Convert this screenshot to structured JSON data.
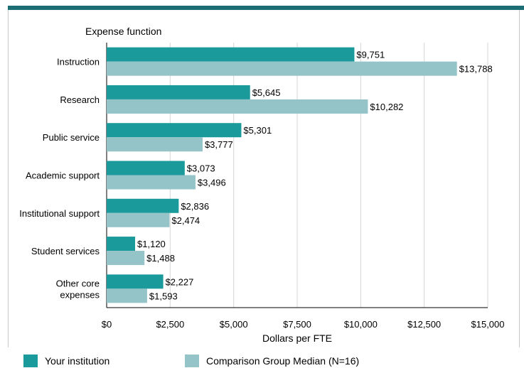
{
  "colors": {
    "institution": "#1b9a9c",
    "comparison": "#94c3c8",
    "accent": "#1c6e74"
  },
  "chart_data": {
    "type": "bar",
    "orientation": "horizontal",
    "title": "Expense function",
    "xlabel": "Dollars per FTE",
    "ylabel": "Expense function",
    "xlim": [
      0,
      15000
    ],
    "xticks": [
      0,
      2500,
      5000,
      7500,
      10000,
      12500,
      15000
    ],
    "xtick_labels": [
      "$0",
      "$2,500",
      "$5,000",
      "$7,500",
      "$10,000",
      "$12,500",
      "$15,000"
    ],
    "grid": true,
    "legend_position": "bottom",
    "categories": [
      "Instruction",
      "Research",
      "Public service",
      "Academic support",
      "Institutional support",
      "Student services",
      "Other core expenses"
    ],
    "category_lines": [
      [
        "Instruction"
      ],
      [
        "Research"
      ],
      [
        "Public service"
      ],
      [
        "Academic support"
      ],
      [
        "Institutional support"
      ],
      [
        "Student services"
      ],
      [
        "Other core",
        "expenses"
      ]
    ],
    "series": [
      {
        "name": "Your institution",
        "values": [
          9751,
          5645,
          5301,
          3073,
          2836,
          1120,
          2227
        ],
        "labels": [
          "$9,751",
          "$5,645",
          "$5,301",
          "$3,073",
          "$2,836",
          "$1,120",
          "$2,227"
        ]
      },
      {
        "name": "Comparison Group Median (N=16)",
        "values": [
          13788,
          10282,
          3777,
          3496,
          2474,
          1488,
          1593
        ],
        "labels": [
          "$13,788",
          "$10,282",
          "$3,777",
          "$3,496",
          "$2,474",
          "$1,488",
          "$1,593"
        ]
      }
    ]
  }
}
